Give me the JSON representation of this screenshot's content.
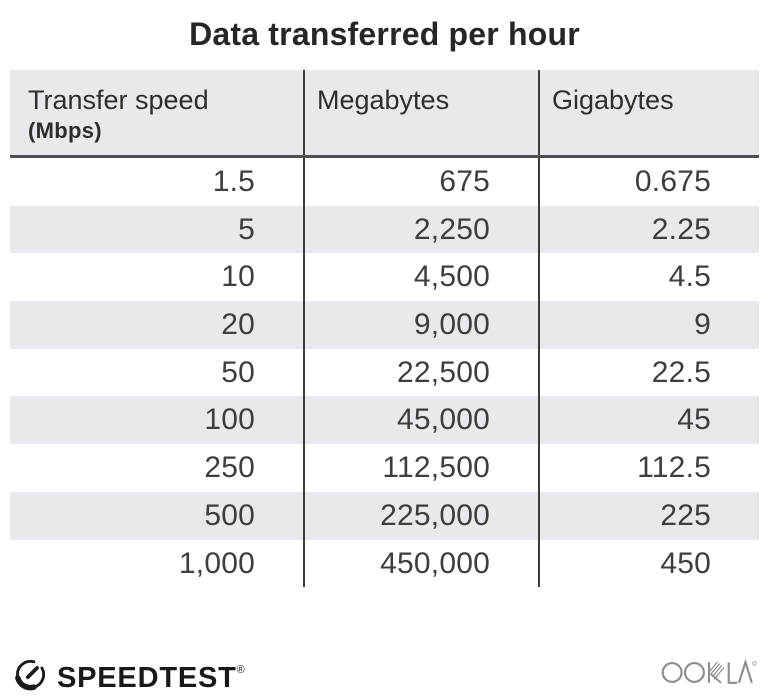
{
  "title": "Data transferred per hour",
  "chart_data": {
    "type": "table",
    "title": "Data transferred per hour",
    "columns": [
      {
        "label": "Transfer speed",
        "sublabel": "(Mbps)"
      },
      {
        "label": "Megabytes",
        "sublabel": ""
      },
      {
        "label": "Gigabytes",
        "sublabel": ""
      }
    ],
    "rows": [
      [
        "1.5",
        "675",
        "0.675"
      ],
      [
        "5",
        "2,250",
        "2.25"
      ],
      [
        "10",
        "4,500",
        "4.5"
      ],
      [
        "20",
        "9,000",
        "9"
      ],
      [
        "50",
        "22,500",
        "22.5"
      ],
      [
        "100",
        "45,000",
        "45"
      ],
      [
        "250",
        "112,500",
        "112.5"
      ],
      [
        "500",
        "225,000",
        "225"
      ],
      [
        "1,000",
        "450,000",
        "450"
      ]
    ],
    "speeds_mbps": [
      1.5,
      5,
      10,
      20,
      50,
      100,
      250,
      500,
      1000
    ],
    "megabytes_per_hour": [
      675,
      2250,
      4500,
      9000,
      22500,
      45000,
      112500,
      225000,
      450000
    ],
    "gigabytes_per_hour": [
      0.675,
      2.25,
      4.5,
      9,
      22.5,
      45,
      112.5,
      225,
      450
    ],
    "layout": {
      "striped_rows": true,
      "alt_row_indices": [
        1,
        3,
        5,
        7
      ],
      "column_dividers": true
    }
  },
  "footer": {
    "speedtest_label": "SPEEDTEST",
    "speedtest_registered": "®",
    "ookla_label": "OOKLA"
  },
  "colors": {
    "header_bg": "#e8e8ed",
    "row_alt_bg": "#e8e8ed",
    "divider": "#3b3b3b",
    "header_underline": "#4f4f52",
    "title_text": "#262626",
    "cell_text": "#3e3e3e",
    "speedtest_logo": "#191919",
    "ookla_logo": "#8d8d8d"
  }
}
